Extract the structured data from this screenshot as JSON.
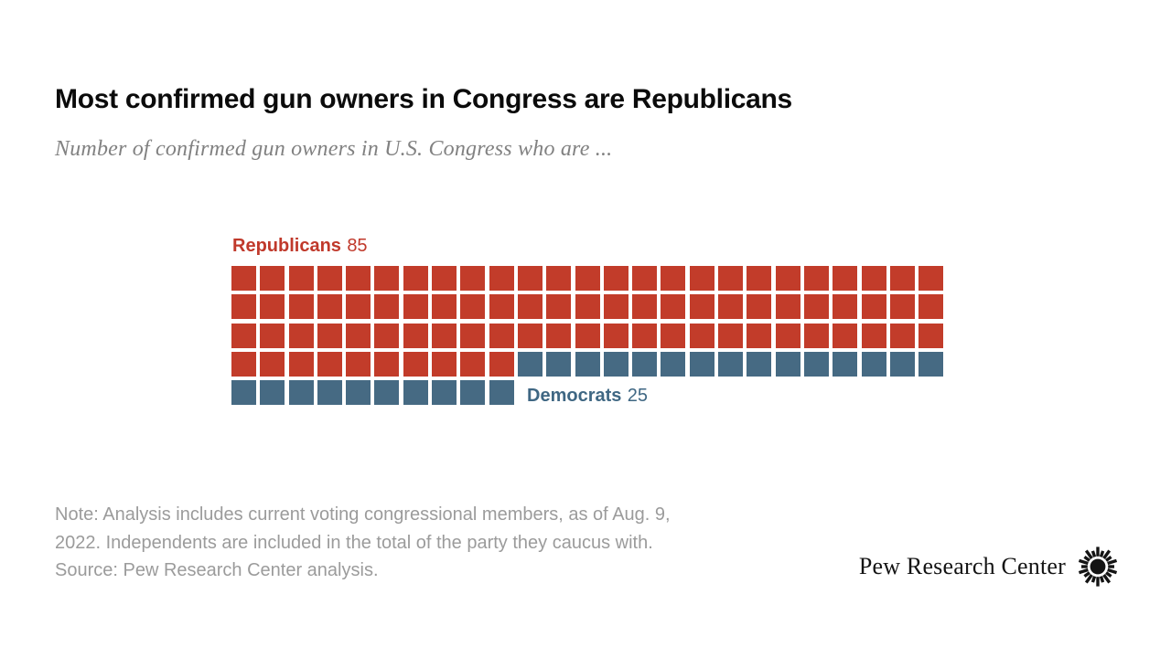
{
  "title": "Most confirmed gun owners in Congress are Republicans",
  "subtitle": "Number of confirmed gun owners in U.S. Congress who are ...",
  "chart_data": {
    "type": "waffle",
    "title": "Most confirmed gun owners in Congress are Republicans",
    "subtitle": "Number of confirmed gun owners in U.S. Congress who are ...",
    "units_per_row": 25,
    "total": 110,
    "series": [
      {
        "name": "Republicans",
        "value": 85,
        "square_color": "#c23c2a",
        "label_color": "#c0392b"
      },
      {
        "name": "Democrats",
        "value": 25,
        "square_color": "#466a83",
        "label_color": "#3f6783"
      }
    ],
    "layout_hint": "rows of 25 squares filled left-to-right, Republicans first"
  },
  "labels": {
    "republicans": {
      "name": "Republicans",
      "value": "85"
    },
    "democrats": {
      "name": "Democrats",
      "value": "25"
    }
  },
  "footer": {
    "note_lines": [
      "Note: Analysis includes current voting congressional members, as of Aug. 9,",
      "2022. Independents are included in the total of the party they caucus with.",
      "Source: Pew Research Center analysis."
    ],
    "brand": "Pew Research Center"
  },
  "colors": {
    "republican_red": "#c23c2a",
    "democrat_blue": "#466a83",
    "title_black": "#0b0b0b",
    "subtitle_gray": "#818181",
    "note_gray": "#9b9b9b",
    "logo_black": "#141414"
  }
}
